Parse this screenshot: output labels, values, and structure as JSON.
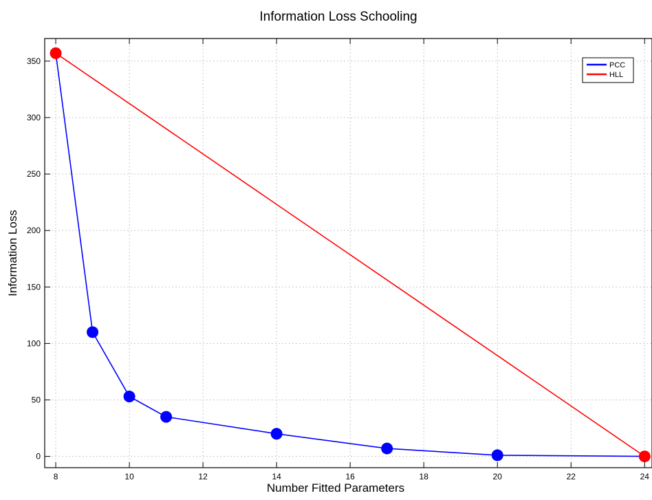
{
  "chart_data": {
    "type": "line",
    "title": "Information Loss Schooling",
    "xlabel": "Number Fitted Parameters",
    "ylabel": "Information Loss",
    "xlim": [
      7.7,
      24.2
    ],
    "ylim": [
      -10,
      370
    ],
    "xticks": [
      8,
      10,
      12,
      14,
      16,
      18,
      20,
      22,
      24
    ],
    "yticks": [
      0,
      50,
      100,
      150,
      200,
      250,
      300,
      350
    ],
    "grid": true,
    "legend_position": "top-right",
    "series": [
      {
        "name": "PCC",
        "color": "#0000ff",
        "x": [
          8,
          9,
          10,
          11,
          14,
          17,
          20,
          24
        ],
        "y": [
          357,
          110,
          53,
          35,
          20,
          7,
          1,
          0
        ],
        "markers": [
          false,
          true,
          true,
          true,
          true,
          true,
          true,
          false
        ]
      },
      {
        "name": "HLL",
        "color": "#ff0000",
        "x": [
          8,
          24
        ],
        "y": [
          357,
          0
        ],
        "markers": [
          true,
          true
        ]
      }
    ]
  }
}
